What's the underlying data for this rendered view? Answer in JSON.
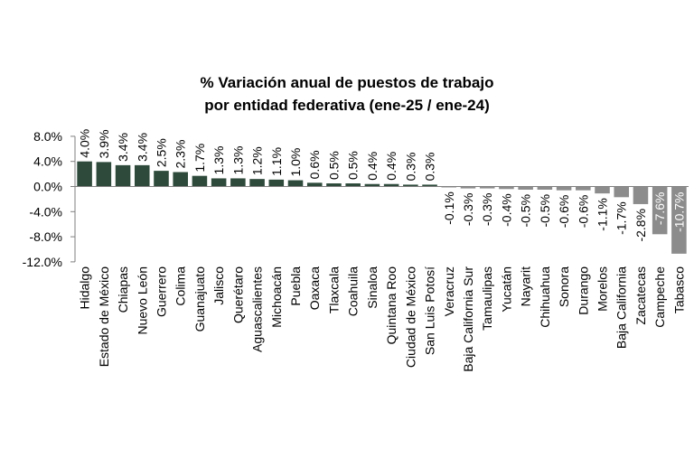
{
  "chart_data": {
    "type": "bar",
    "title": [
      "% Variación anual de puestos de trabajo",
      "por entidad federativa (ene-25 / ene-24)"
    ],
    "xlabel": "",
    "ylabel": "",
    "ylim": [
      -12,
      8
    ],
    "yticks": [
      "8.0%",
      "4.0%",
      "0.0%",
      "-4.0%",
      "-8.0%",
      "-12.0%"
    ],
    "ytick_values": [
      8,
      4,
      0,
      -4,
      -8,
      -12
    ],
    "categories": [
      "Hidalgo",
      "Estado de México",
      "Chiapas",
      "Nuevo León",
      "Guerrero",
      "Colima",
      "Guanajuato",
      "Jalisco",
      "Querétaro",
      "Aguascalientes",
      "Michoacán",
      "Puebla",
      "Oaxaca",
      "Tlaxcala",
      "Coahuila",
      "Sinaloa",
      "Quintana Roo",
      "Ciudad de México",
      "San Luis Potosí",
      "Veracruz",
      "Baja California Sur",
      "Tamaulipas",
      "Yucatán",
      "Nayarit",
      "Chihuahua",
      "Sonora",
      "Durango",
      "Morelos",
      "Baja California",
      "Zacatecas",
      "Campeche",
      "Tabasco"
    ],
    "values": [
      4.0,
      3.9,
      3.4,
      3.4,
      2.5,
      2.3,
      1.7,
      1.3,
      1.3,
      1.2,
      1.1,
      1.0,
      0.6,
      0.5,
      0.5,
      0.4,
      0.4,
      0.3,
      0.3,
      -0.1,
      -0.3,
      -0.3,
      -0.4,
      -0.5,
      -0.5,
      -0.6,
      -0.6,
      -1.1,
      -1.7,
      -2.8,
      -7.6,
      -10.7
    ],
    "data_labels": [
      "4.0%",
      "3.9%",
      "3.4%",
      "3.4%",
      "2.5%",
      "2.3%",
      "1.7%",
      "1.3%",
      "1.3%",
      "1.2%",
      "1.1%",
      "1.0%",
      "0.6%",
      "0.5%",
      "0.5%",
      "0.4%",
      "0.4%",
      "0.3%",
      "0.3%",
      "-0.1%",
      "-0.3%",
      "-0.3%",
      "-0.4%",
      "-0.5%",
      "-0.5%",
      "-0.6%",
      "-0.6%",
      "-1.1%",
      "-1.7%",
      "-2.8%",
      "-7.6%",
      "-10.7%"
    ],
    "colors": {
      "positive": "#2e4a3b",
      "negative": "#8c8c8c",
      "axis": "#7f7f7f",
      "text": "#000000",
      "label_on_bar": "#ffffff"
    },
    "grid": false,
    "legend": "none"
  }
}
